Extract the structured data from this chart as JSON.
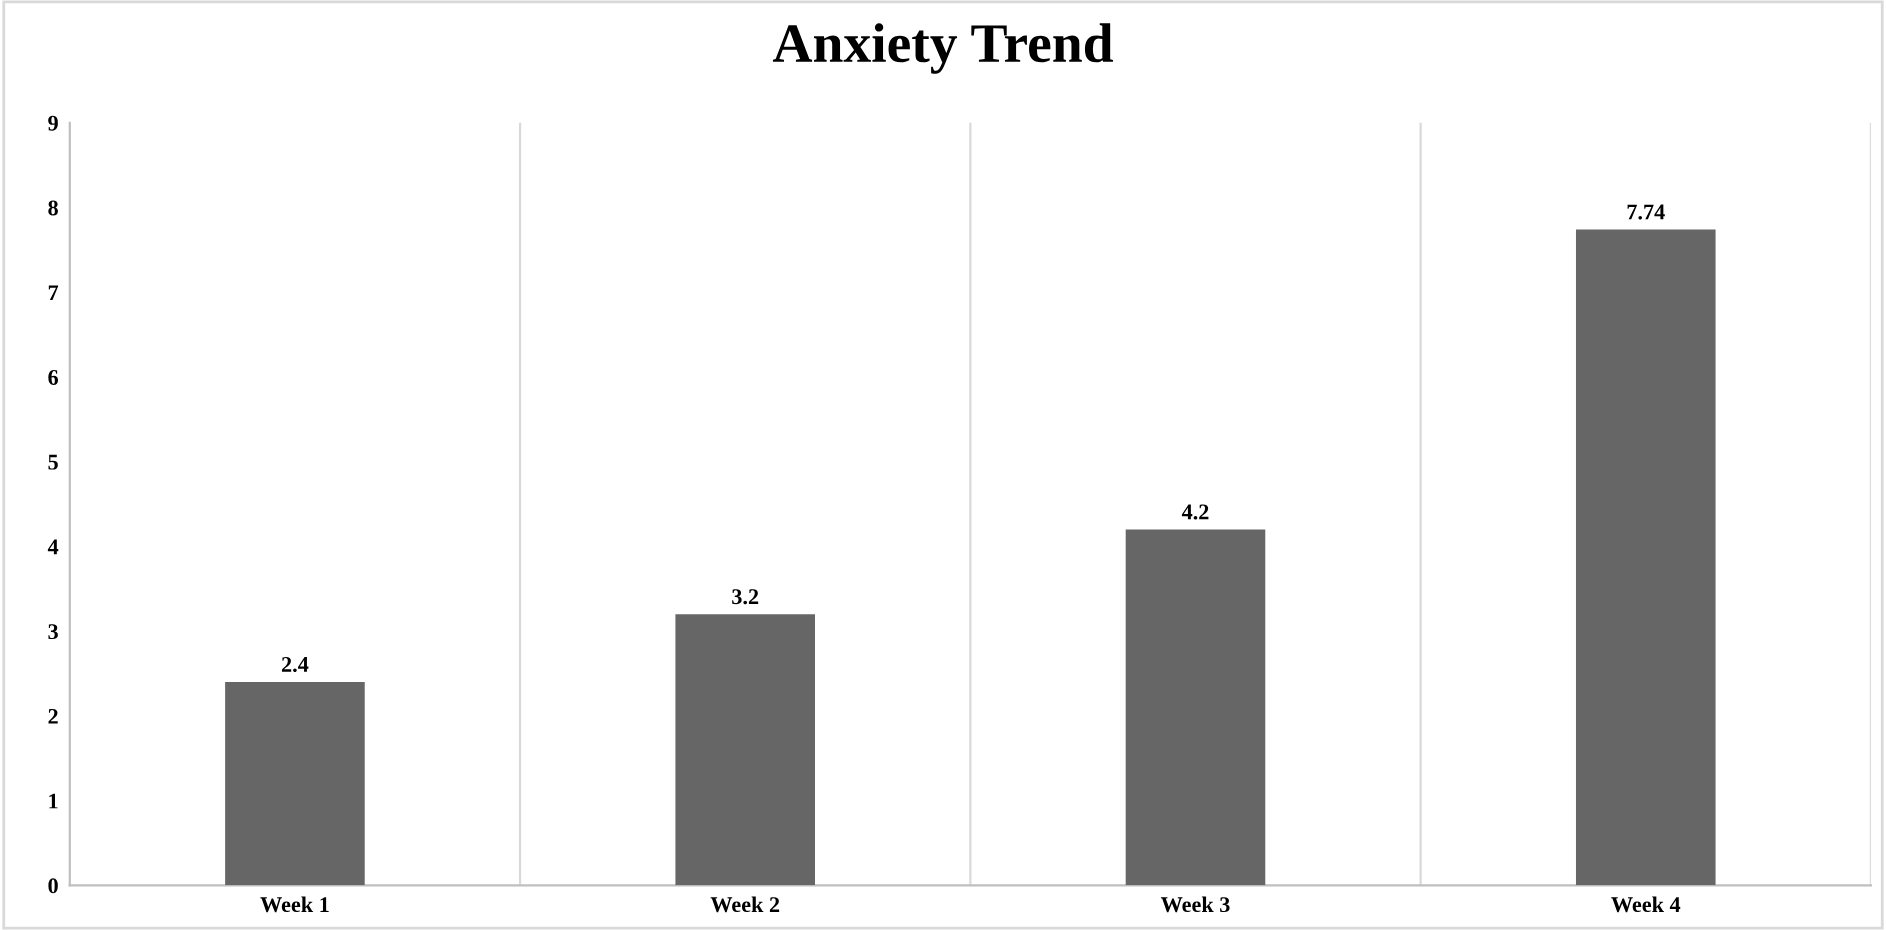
{
  "chart_data": {
    "type": "bar",
    "title": "Anxiety Trend",
    "categories": [
      "Week 1",
      "Week 2",
      "Week 3",
      "Week 4"
    ],
    "values": [
      2.4,
      3.2,
      4.2,
      7.74
    ],
    "color": "#666666",
    "ylim": [
      0,
      9
    ],
    "yticks": [
      0,
      1,
      2,
      3,
      4,
      5,
      6,
      7,
      8,
      9
    ],
    "grid": "x",
    "data_labels": true
  }
}
